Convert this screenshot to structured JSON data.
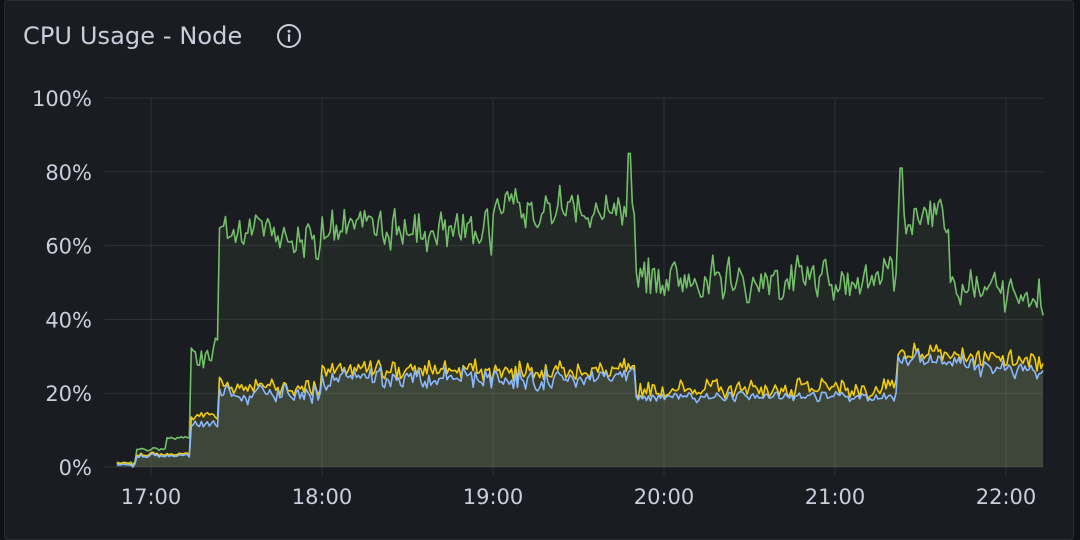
{
  "panel": {
    "title": "CPU Usage - Node",
    "info_icon": "info-circle-icon"
  },
  "colors": {
    "panel_bg": "#1b1c21",
    "grid": "#2e3036",
    "text": "#ccccdc",
    "green": "#73bf69",
    "yellow": "#f2cc0c",
    "blue": "#8ab8ff"
  },
  "chart_data": {
    "type": "line",
    "title": "CPU Usage - Node",
    "xlabel": "",
    "ylabel": "",
    "ylim": [
      0,
      100
    ],
    "y_ticks": [
      "0%",
      "20%",
      "40%",
      "60%",
      "80%",
      "100%"
    ],
    "x_ticks": [
      "17:00",
      "18:00",
      "19:00",
      "20:00",
      "21:00",
      "22:00"
    ],
    "x_range": [
      "16:48",
      "22:13"
    ],
    "grid": true,
    "legend": "none",
    "fill": "area under lines, low opacity",
    "series": [
      {
        "name": "green",
        "color": "#73bf69",
        "segments": [
          {
            "from": "16:48",
            "to": "16:55",
            "level": 1
          },
          {
            "from": "16:55",
            "to": "17:05",
            "level": 5
          },
          {
            "from": "17:05",
            "to": "17:14",
            "level": 8
          },
          {
            "from": "17:14",
            "to": "17:24",
            "level": 32
          },
          {
            "from": "17:24",
            "to": "17:50",
            "level": 64
          },
          {
            "from": "17:50",
            "to": "18:00",
            "level": 61
          },
          {
            "from": "18:00",
            "to": "19:00",
            "level": 64
          },
          {
            "from": "19:00",
            "to": "19:50",
            "level": 70
          },
          {
            "from": "19:50",
            "to": "21:22",
            "level": 51
          },
          {
            "from": "21:22",
            "to": "21:40",
            "level": 68
          },
          {
            "from": "21:40",
            "to": "22:13",
            "level": 50
          }
        ],
        "peaks": [
          {
            "time": "19:48",
            "value": 85
          },
          {
            "time": "21:23",
            "value": 81
          }
        ],
        "end_value": 45
      },
      {
        "name": "yellow",
        "color": "#f2cc0c",
        "segments": [
          {
            "from": "16:48",
            "to": "16:55",
            "level": 0.5
          },
          {
            "from": "16:55",
            "to": "17:14",
            "level": 3
          },
          {
            "from": "17:14",
            "to": "17:24",
            "level": 14
          },
          {
            "from": "17:24",
            "to": "18:00",
            "level": 22
          },
          {
            "from": "18:00",
            "to": "19:50",
            "level": 26
          },
          {
            "from": "19:50",
            "to": "21:22",
            "level": 21
          },
          {
            "from": "21:22",
            "to": "22:13",
            "level": 32
          }
        ],
        "end_value": 28
      },
      {
        "name": "blue",
        "color": "#8ab8ff",
        "segments": [
          {
            "from": "16:48",
            "to": "16:55",
            "level": 0.5
          },
          {
            "from": "16:55",
            "to": "17:14",
            "level": 3
          },
          {
            "from": "17:14",
            "to": "17:24",
            "level": 12
          },
          {
            "from": "17:24",
            "to": "18:00",
            "level": 20
          },
          {
            "from": "18:00",
            "to": "19:50",
            "level": 24
          },
          {
            "from": "19:50",
            "to": "21:22",
            "level": 19
          },
          {
            "from": "21:22",
            "to": "22:13",
            "level": 30
          }
        ],
        "end_value": 25
      }
    ]
  }
}
